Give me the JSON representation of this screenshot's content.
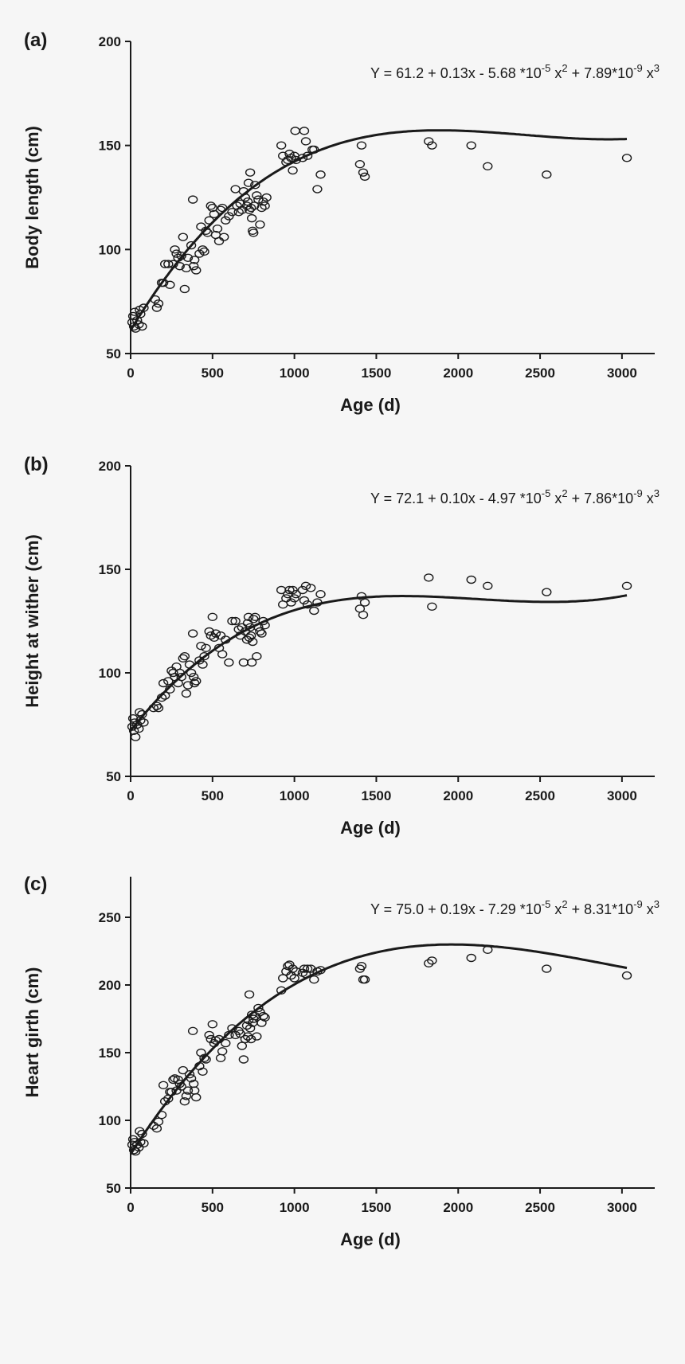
{
  "chart_data": [
    {
      "type": "scatter",
      "panel_label": "(a)",
      "ylabel": "Body length (cm)",
      "xlabel": "Age (d)",
      "equation": {
        "main": "Y = 61.2 + 0.13x - 5.68 *10",
        "e1": "-5",
        "mid1": " x",
        "e2": "2",
        "mid2": "  + 7.89*10",
        "e3": "-9",
        "mid3": " x",
        "e4": "3"
      },
      "coef": [
        61.2,
        0.13,
        -5.68e-05,
        7.89e-09
      ],
      "xlim": [
        0,
        3200
      ],
      "ylim": [
        50,
        200
      ],
      "xticks": [
        0,
        500,
        1000,
        1500,
        2000,
        2500,
        3000
      ],
      "yticks": [
        50,
        100,
        150,
        200
      ],
      "points": [
        [
          10,
          65
        ],
        [
          15,
          68
        ],
        [
          20,
          63
        ],
        [
          25,
          70
        ],
        [
          30,
          62
        ],
        [
          40,
          66
        ],
        [
          50,
          64
        ],
        [
          55,
          71
        ],
        [
          60,
          69
        ],
        [
          70,
          63
        ],
        [
          80,
          72
        ],
        [
          150,
          76
        ],
        [
          160,
          72
        ],
        [
          170,
          74
        ],
        [
          190,
          84
        ],
        [
          200,
          84
        ],
        [
          210,
          93
        ],
        [
          230,
          93
        ],
        [
          240,
          83
        ],
        [
          260,
          93
        ],
        [
          270,
          100
        ],
        [
          280,
          98
        ],
        [
          290,
          96
        ],
        [
          300,
          92
        ],
        [
          310,
          97
        ],
        [
          320,
          106
        ],
        [
          330,
          81
        ],
        [
          340,
          91
        ],
        [
          350,
          96
        ],
        [
          370,
          102
        ],
        [
          380,
          124
        ],
        [
          385,
          92
        ],
        [
          390,
          95
        ],
        [
          400,
          90
        ],
        [
          420,
          98
        ],
        [
          430,
          111
        ],
        [
          440,
          100
        ],
        [
          450,
          99
        ],
        [
          460,
          109
        ],
        [
          470,
          108
        ],
        [
          480,
          114
        ],
        [
          490,
          121
        ],
        [
          500,
          120
        ],
        [
          510,
          117
        ],
        [
          520,
          107
        ],
        [
          530,
          110
        ],
        [
          540,
          104
        ],
        [
          550,
          119
        ],
        [
          560,
          120
        ],
        [
          570,
          106
        ],
        [
          580,
          114
        ],
        [
          600,
          116
        ],
        [
          620,
          118
        ],
        [
          640,
          129
        ],
        [
          650,
          121
        ],
        [
          660,
          118
        ],
        [
          670,
          122
        ],
        [
          680,
          119
        ],
        [
          690,
          128
        ],
        [
          700,
          125
        ],
        [
          710,
          121
        ],
        [
          715,
          123
        ],
        [
          720,
          132
        ],
        [
          725,
          119
        ],
        [
          730,
          137
        ],
        [
          735,
          120
        ],
        [
          740,
          115
        ],
        [
          745,
          109
        ],
        [
          750,
          108
        ],
        [
          755,
          121
        ],
        [
          760,
          131
        ],
        [
          770,
          126
        ],
        [
          780,
          124
        ],
        [
          790,
          112
        ],
        [
          800,
          120
        ],
        [
          810,
          123
        ],
        [
          820,
          121
        ],
        [
          830,
          125
        ],
        [
          920,
          150
        ],
        [
          930,
          145
        ],
        [
          950,
          142
        ],
        [
          960,
          143
        ],
        [
          970,
          146
        ],
        [
          980,
          144
        ],
        [
          990,
          138
        ],
        [
          1000,
          145
        ],
        [
          1005,
          157
        ],
        [
          1010,
          143
        ],
        [
          1050,
          144
        ],
        [
          1060,
          157
        ],
        [
          1070,
          152
        ],
        [
          1080,
          145
        ],
        [
          1110,
          148
        ],
        [
          1120,
          148
        ],
        [
          1140,
          129
        ],
        [
          1160,
          136
        ],
        [
          1400,
          141
        ],
        [
          1410,
          150
        ],
        [
          1420,
          137
        ],
        [
          1430,
          135
        ],
        [
          1820,
          152
        ],
        [
          1840,
          150
        ],
        [
          2080,
          150
        ],
        [
          2180,
          140
        ],
        [
          2540,
          136
        ],
        [
          3030,
          144
        ]
      ]
    },
    {
      "type": "scatter",
      "panel_label": "(b)",
      "ylabel": "Height at wither (cm)",
      "xlabel": "Age (d)",
      "equation": {
        "main": "Y = 72.1 + 0.10x - 4.97 *10",
        "e1": "-5",
        "mid1": " x",
        "e2": "2",
        "mid2": "  + 7.86*10",
        "e3": "-9",
        "mid3": " x",
        "e4": "3"
      },
      "coef": [
        72.1,
        0.1,
        -4.97e-05,
        7.86e-09
      ],
      "xlim": [
        0,
        3200
      ],
      "ylim": [
        50,
        200
      ],
      "xticks": [
        0,
        500,
        1000,
        1500,
        2000,
        2500,
        3000
      ],
      "yticks": [
        50,
        100,
        150,
        200
      ],
      "points": [
        [
          10,
          74
        ],
        [
          15,
          78
        ],
        [
          20,
          72
        ],
        [
          25,
          76
        ],
        [
          30,
          69
        ],
        [
          40,
          75
        ],
        [
          50,
          73
        ],
        [
          55,
          81
        ],
        [
          60,
          77
        ],
        [
          70,
          80
        ],
        [
          80,
          76
        ],
        [
          140,
          83
        ],
        [
          160,
          84
        ],
        [
          170,
          83
        ],
        [
          190,
          88
        ],
        [
          200,
          95
        ],
        [
          210,
          89
        ],
        [
          230,
          96
        ],
        [
          240,
          92
        ],
        [
          250,
          101
        ],
        [
          260,
          100
        ],
        [
          270,
          98
        ],
        [
          280,
          103
        ],
        [
          290,
          95
        ],
        [
          300,
          100
        ],
        [
          310,
          98
        ],
        [
          320,
          107
        ],
        [
          330,
          108
        ],
        [
          340,
          90
        ],
        [
          350,
          94
        ],
        [
          360,
          104
        ],
        [
          370,
          100
        ],
        [
          380,
          119
        ],
        [
          385,
          98
        ],
        [
          390,
          95
        ],
        [
          400,
          96
        ],
        [
          420,
          106
        ],
        [
          430,
          113
        ],
        [
          440,
          104
        ],
        [
          450,
          108
        ],
        [
          460,
          112
        ],
        [
          480,
          120
        ],
        [
          490,
          118
        ],
        [
          500,
          127
        ],
        [
          510,
          117
        ],
        [
          520,
          119
        ],
        [
          540,
          112
        ],
        [
          550,
          118
        ],
        [
          560,
          109
        ],
        [
          580,
          116
        ],
        [
          600,
          105
        ],
        [
          620,
          125
        ],
        [
          640,
          125
        ],
        [
          660,
          121
        ],
        [
          670,
          118
        ],
        [
          680,
          122
        ],
        [
          690,
          105
        ],
        [
          700,
          120
        ],
        [
          710,
          116
        ],
        [
          715,
          124
        ],
        [
          720,
          127
        ],
        [
          725,
          117
        ],
        [
          730,
          122
        ],
        [
          735,
          118
        ],
        [
          740,
          105
        ],
        [
          745,
          115
        ],
        [
          750,
          126
        ],
        [
          760,
          127
        ],
        [
          770,
          108
        ],
        [
          780,
          122
        ],
        [
          790,
          120
        ],
        [
          800,
          119
        ],
        [
          810,
          125
        ],
        [
          820,
          123
        ],
        [
          920,
          140
        ],
        [
          930,
          133
        ],
        [
          950,
          136
        ],
        [
          960,
          138
        ],
        [
          970,
          140
        ],
        [
          980,
          134
        ],
        [
          990,
          140
        ],
        [
          1000,
          136
        ],
        [
          1010,
          138
        ],
        [
          1050,
          140
        ],
        [
          1060,
          135
        ],
        [
          1070,
          142
        ],
        [
          1080,
          133
        ],
        [
          1100,
          141
        ],
        [
          1120,
          130
        ],
        [
          1140,
          134
        ],
        [
          1160,
          138
        ],
        [
          1400,
          131
        ],
        [
          1410,
          137
        ],
        [
          1420,
          128
        ],
        [
          1430,
          134
        ],
        [
          1820,
          146
        ],
        [
          1840,
          132
        ],
        [
          2080,
          145
        ],
        [
          2180,
          142
        ],
        [
          2540,
          139
        ],
        [
          3030,
          142
        ]
      ]
    },
    {
      "type": "scatter",
      "panel_label": "(c)",
      "ylabel": "Heart girth (cm)",
      "xlabel": "Age (d)",
      "equation": {
        "main": "Y = 75.0 + 0.19x - 7.29 *10",
        "e1": "-5",
        "mid1": " x",
        "e2": "2",
        "mid2": "  + 8.31*10",
        "e3": "-9",
        "mid3": " x",
        "e4": "3"
      },
      "coef": [
        75.0,
        0.19,
        -7.29e-05,
        8.31e-09
      ],
      "xlim": [
        0,
        3200
      ],
      "ylim": [
        50,
        280
      ],
      "xticks": [
        0,
        500,
        1000,
        1500,
        2000,
        2500,
        3000
      ],
      "yticks": [
        50,
        100,
        150,
        200,
        250
      ],
      "points": [
        [
          10,
          82
        ],
        [
          15,
          86
        ],
        [
          20,
          78
        ],
        [
          25,
          84
        ],
        [
          30,
          77
        ],
        [
          40,
          82
        ],
        [
          50,
          80
        ],
        [
          55,
          92
        ],
        [
          60,
          84
        ],
        [
          70,
          90
        ],
        [
          80,
          83
        ],
        [
          140,
          96
        ],
        [
          160,
          94
        ],
        [
          170,
          99
        ],
        [
          190,
          104
        ],
        [
          200,
          126
        ],
        [
          210,
          114
        ],
        [
          230,
          116
        ],
        [
          240,
          121
        ],
        [
          250,
          121
        ],
        [
          260,
          130
        ],
        [
          270,
          131
        ],
        [
          280,
          122
        ],
        [
          290,
          130
        ],
        [
          300,
          127
        ],
        [
          310,
          125
        ],
        [
          320,
          137
        ],
        [
          330,
          114
        ],
        [
          340,
          118
        ],
        [
          350,
          122
        ],
        [
          360,
          134
        ],
        [
          370,
          131
        ],
        [
          380,
          166
        ],
        [
          385,
          127
        ],
        [
          390,
          122
        ],
        [
          400,
          117
        ],
        [
          420,
          140
        ],
        [
          430,
          150
        ],
        [
          440,
          136
        ],
        [
          450,
          146
        ],
        [
          460,
          145
        ],
        [
          480,
          163
        ],
        [
          490,
          160
        ],
        [
          500,
          171
        ],
        [
          510,
          157
        ],
        [
          520,
          159
        ],
        [
          540,
          160
        ],
        [
          550,
          146
        ],
        [
          560,
          151
        ],
        [
          580,
          157
        ],
        [
          600,
          163
        ],
        [
          620,
          168
        ],
        [
          640,
          163
        ],
        [
          660,
          166
        ],
        [
          670,
          164
        ],
        [
          680,
          155
        ],
        [
          690,
          145
        ],
        [
          700,
          160
        ],
        [
          710,
          170
        ],
        [
          715,
          162
        ],
        [
          720,
          174
        ],
        [
          725,
          193
        ],
        [
          730,
          168
        ],
        [
          735,
          160
        ],
        [
          740,
          178
        ],
        [
          745,
          172
        ],
        [
          750,
          175
        ],
        [
          760,
          177
        ],
        [
          770,
          162
        ],
        [
          780,
          183
        ],
        [
          790,
          180
        ],
        [
          800,
          172
        ],
        [
          810,
          177
        ],
        [
          820,
          176
        ],
        [
          920,
          196
        ],
        [
          930,
          205
        ],
        [
          950,
          210
        ],
        [
          960,
          214
        ],
        [
          970,
          215
        ],
        [
          980,
          207
        ],
        [
          990,
          212
        ],
        [
          1000,
          205
        ],
        [
          1010,
          210
        ],
        [
          1050,
          209
        ],
        [
          1060,
          212
        ],
        [
          1070,
          208
        ],
        [
          1080,
          212
        ],
        [
          1100,
          212
        ],
        [
          1120,
          204
        ],
        [
          1140,
          210
        ],
        [
          1160,
          211
        ],
        [
          1400,
          212
        ],
        [
          1410,
          214
        ],
        [
          1420,
          204
        ],
        [
          1430,
          204
        ],
        [
          1820,
          216
        ],
        [
          1840,
          218
        ],
        [
          2080,
          220
        ],
        [
          2180,
          226
        ],
        [
          2540,
          212
        ],
        [
          3030,
          207
        ]
      ]
    }
  ]
}
